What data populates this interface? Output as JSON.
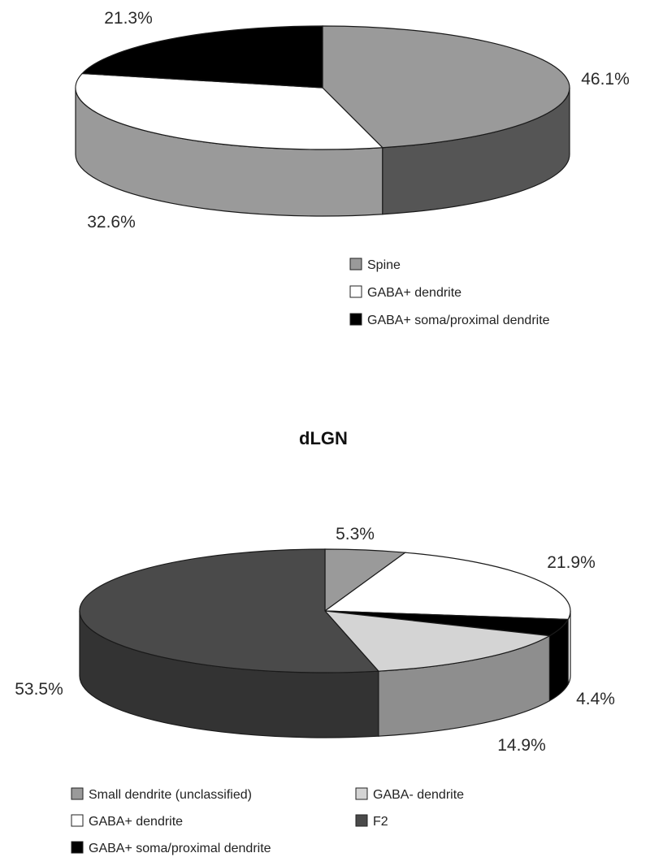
{
  "chart_data": [
    {
      "type": "pie",
      "title": "",
      "slices": [
        {
          "label": "Spine",
          "value": 46.1,
          "value_text": "46.1%",
          "color": "#9a9a9a",
          "side_color": "#555555"
        },
        {
          "label": "GABA+ dendrite",
          "value": 32.6,
          "value_text": "32.6%",
          "color": "#ffffff",
          "side_color": "#9a9a9a"
        },
        {
          "label": "GABA+ soma/proximal dendrite",
          "value": 21.3,
          "value_text": "21.3%",
          "color": "#000000",
          "side_color": "#000000"
        }
      ],
      "legend": [
        "Spine",
        "GABA+ dendrite",
        "GABA+ soma/proximal dendrite"
      ],
      "style": "3d"
    },
    {
      "type": "pie",
      "title": "dLGN",
      "slices": [
        {
          "label": "Small dendrite (unclassified)",
          "value": 5.3,
          "value_text": "5.3%",
          "color": "#9a9a9a",
          "side_color": "#8a8a8a"
        },
        {
          "label": "GABA+ dendrite",
          "value": 21.9,
          "value_text": "21.9%",
          "color": "#ffffff",
          "side_color": "#ffffff"
        },
        {
          "label": "GABA+ soma/proximal dendrite",
          "value": 4.4,
          "value_text": "4.4%",
          "color": "#000000",
          "side_color": "#000000"
        },
        {
          "label": "GABA- dendrite",
          "value": 14.9,
          "value_text": "14.9%",
          "color": "#d4d4d4",
          "side_color": "#8e8e8e"
        },
        {
          "label": "F2",
          "value": 53.5,
          "value_text": "53.5%",
          "color": "#4a4a4a",
          "side_color": "#333333"
        }
      ],
      "legend": [
        "Small dendrite (unclassified)",
        "GABA- dendrite",
        "GABA+ dendrite",
        "F2",
        "GABA+ soma/proximal dendrite"
      ],
      "style": "3d"
    }
  ]
}
